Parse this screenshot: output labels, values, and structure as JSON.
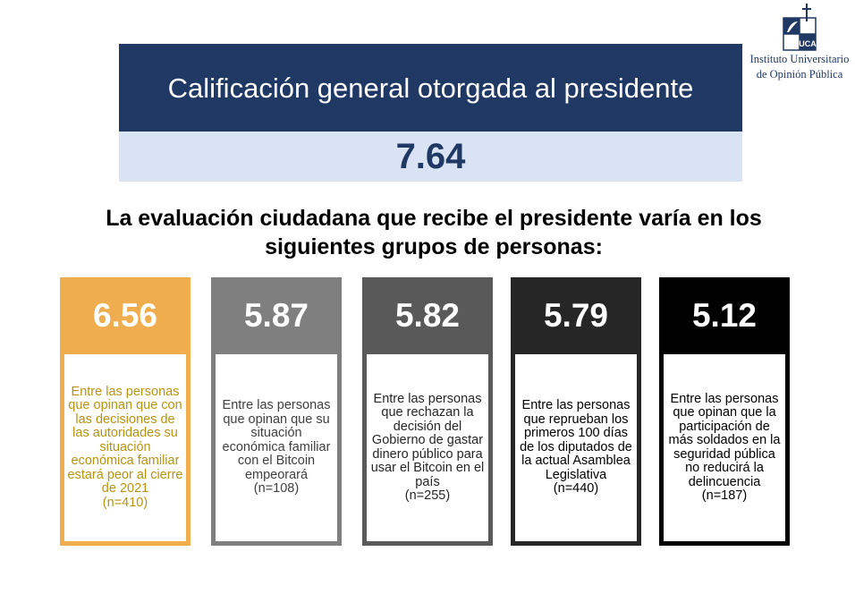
{
  "header": {
    "title": "Calificación general otorgada al presidente",
    "score": "7.64"
  },
  "subtitle": "La evaluación ciudadana que recibe el presidente varía en los siguientes grupos de personas:",
  "logo": {
    "text_line1": "Instituto Universitario",
    "text_line2": "de Opinión Pública",
    "mark": "UCA"
  },
  "cards": [
    {
      "value": "6.56",
      "description": "Entre las personas que opinan que con las decisiones de las autoridades su situación económica familiar estará peor al cierre de 2021",
      "n": "(n=410)",
      "color": "#f0ad4e",
      "text_color": "#b8930f"
    },
    {
      "value": "5.87",
      "description": "Entre las personas que opinan que su situación económica familiar con el Bitcoin empeorará",
      "n": "(n=108)",
      "color": "#7f7f7f",
      "text_color": "#404040"
    },
    {
      "value": "5.82",
      "description": "Entre las personas que rechazan la decisión del Gobierno de gastar dinero público para usar el Bitcoin en el país",
      "n": "(n=255)",
      "color": "#595959",
      "text_color": "#262626"
    },
    {
      "value": "5.79",
      "description": "Entre las personas que reprueban los primeros 100 días de los diputados de la actual Asamblea Legislativa",
      "n": "(n=440)",
      "color": "#262626",
      "text_color": "#000000"
    },
    {
      "value": "5.12",
      "description": "Entre las personas que opinan que la participación de más soldados en la seguridad pública no reducirá la delincuencia",
      "n": "(n=187)",
      "color": "#000000",
      "text_color": "#000000"
    }
  ]
}
